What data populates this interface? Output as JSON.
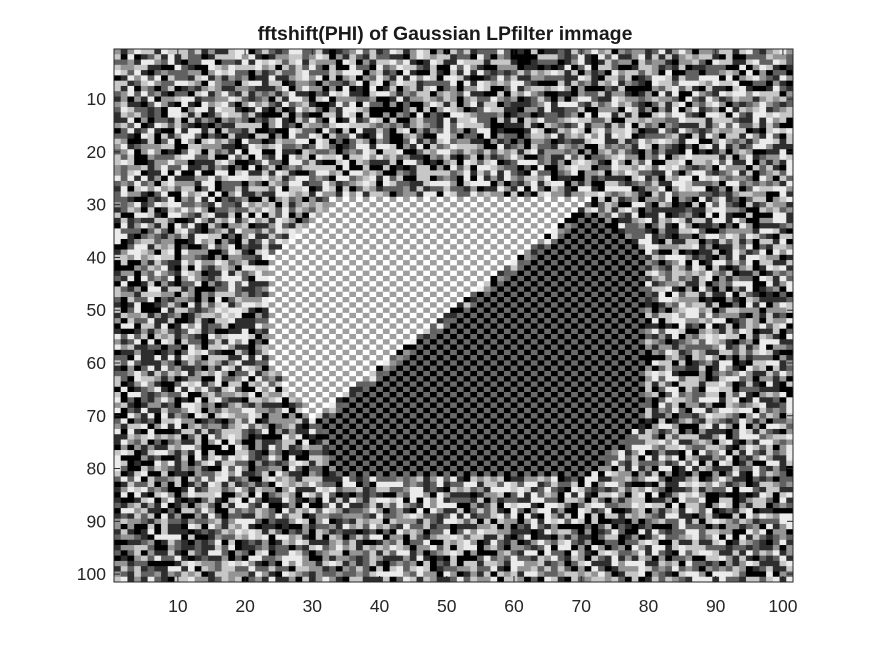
{
  "chart_data": {
    "type": "heatmap",
    "title": "fftshift(PHI) of  Gaussian LPfilter immage",
    "xlabel": "",
    "ylabel": "",
    "colormap": "gray",
    "rows": 101,
    "cols": 101,
    "xlim": [
      0.5,
      101.5
    ],
    "ylim": [
      0.5,
      101.5
    ],
    "y_direction": "reverse",
    "xticks": [
      10,
      20,
      30,
      40,
      50,
      60,
      70,
      80,
      90,
      100
    ],
    "yticks": [
      10,
      20,
      30,
      40,
      50,
      60,
      70,
      80,
      90,
      100
    ],
    "regions": {
      "light_checkerboard": {
        "corners_col_row": [
          [
            30,
            71
          ],
          [
            24,
            61
          ],
          [
            24,
            40
          ],
          [
            33,
            29
          ],
          [
            72,
            29
          ]
        ],
        "values": [
          0.62,
          1.0
        ]
      },
      "dark_checkerboard": {
        "corners_col_row": [
          [
            31,
            71
          ],
          [
            72,
            31
          ],
          [
            80,
            40
          ],
          [
            80,
            70
          ],
          [
            71,
            82
          ],
          [
            34,
            82
          ]
        ],
        "values": [
          0.0,
          0.42
        ]
      },
      "background": "random phase noise (dark-to-light gray levels)"
    }
  },
  "colors": {
    "background": "#ffffff",
    "axis": "#262626",
    "title": "#1a1a1a"
  }
}
